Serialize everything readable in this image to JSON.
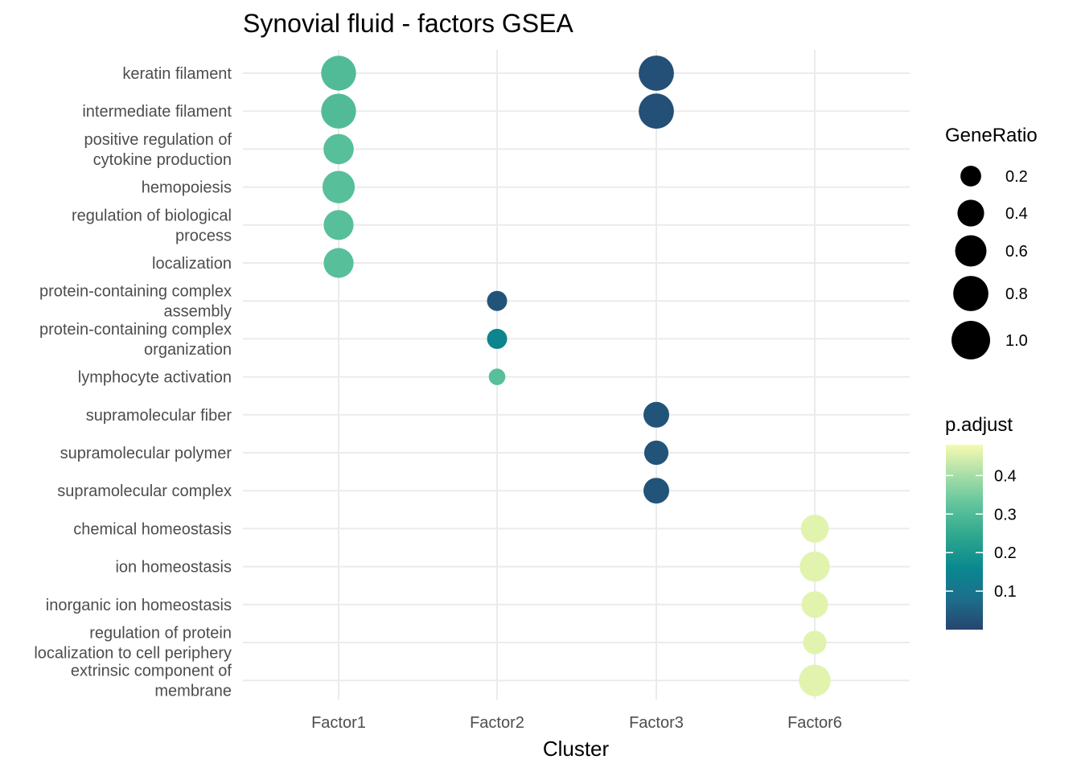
{
  "chart_data": {
    "type": "scatter",
    "title": "Synovial fluid - factors GSEA",
    "xlabel": "Cluster",
    "ylabel": "",
    "x_categories": [
      "Factor1",
      "Factor2",
      "Factor3",
      "Factor6"
    ],
    "y_categories": [
      [
        "keratin filament"
      ],
      [
        "intermediate filament"
      ],
      [
        "positive regulation of",
        "cytokine production"
      ],
      [
        "hemopoiesis"
      ],
      [
        "regulation of biological",
        "process"
      ],
      [
        "localization"
      ],
      [
        "protein-containing complex",
        "assembly"
      ],
      [
        "protein-containing complex",
        "organization"
      ],
      [
        "lymphocyte activation"
      ],
      [
        "supramolecular fiber"
      ],
      [
        "supramolecular polymer"
      ],
      [
        "supramolecular complex"
      ],
      [
        "chemical homeostasis"
      ],
      [
        "ion homeostasis"
      ],
      [
        "inorganic ion homeostasis"
      ],
      [
        "regulation of protein",
        "localization to cell periphery"
      ],
      [
        "extrinsic component of",
        "membrane"
      ]
    ],
    "points": [
      {
        "x": "Factor1",
        "y": 0,
        "gene_ratio": 0.78,
        "p_adjust": 0.3
      },
      {
        "x": "Factor1",
        "y": 1,
        "gene_ratio": 0.78,
        "p_adjust": 0.3
      },
      {
        "x": "Factor1",
        "y": 2,
        "gene_ratio": 0.55,
        "p_adjust": 0.31
      },
      {
        "x": "Factor1",
        "y": 3,
        "gene_ratio": 0.65,
        "p_adjust": 0.31
      },
      {
        "x": "Factor1",
        "y": 4,
        "gene_ratio": 0.53,
        "p_adjust": 0.31
      },
      {
        "x": "Factor1",
        "y": 5,
        "gene_ratio": 0.53,
        "p_adjust": 0.31
      },
      {
        "x": "Factor2",
        "y": 6,
        "gene_ratio": 0.18,
        "p_adjust": 0.03
      },
      {
        "x": "Factor2",
        "y": 7,
        "gene_ratio": 0.18,
        "p_adjust": 0.15
      },
      {
        "x": "Factor2",
        "y": 8,
        "gene_ratio": 0.1,
        "p_adjust": 0.31
      },
      {
        "x": "Factor3",
        "y": 0,
        "gene_ratio": 0.8,
        "p_adjust": 0.02
      },
      {
        "x": "Factor3",
        "y": 1,
        "gene_ratio": 0.8,
        "p_adjust": 0.02
      },
      {
        "x": "Factor3",
        "y": 9,
        "gene_ratio": 0.36,
        "p_adjust": 0.03
      },
      {
        "x": "Factor3",
        "y": 10,
        "gene_ratio": 0.31,
        "p_adjust": 0.03
      },
      {
        "x": "Factor3",
        "y": 11,
        "gene_ratio": 0.36,
        "p_adjust": 0.03
      },
      {
        "x": "Factor6",
        "y": 12,
        "gene_ratio": 0.45,
        "p_adjust": 0.46
      },
      {
        "x": "Factor6",
        "y": 13,
        "gene_ratio": 0.55,
        "p_adjust": 0.46
      },
      {
        "x": "Factor6",
        "y": 14,
        "gene_ratio": 0.4,
        "p_adjust": 0.46
      },
      {
        "x": "Factor6",
        "y": 15,
        "gene_ratio": 0.28,
        "p_adjust": 0.46
      },
      {
        "x": "Factor6",
        "y": 16,
        "gene_ratio": 0.62,
        "p_adjust": 0.46
      }
    ],
    "size_legend": {
      "title": "GeneRatio",
      "breaks": [
        0.2,
        0.4,
        0.6,
        0.8,
        1.0
      ],
      "labels": [
        "0.2",
        "0.4",
        "0.6",
        "0.8",
        "1.0"
      ]
    },
    "color_legend": {
      "title": "p.adjust",
      "min": 0.0,
      "max": 0.48,
      "breaks": [
        0.1,
        0.2,
        0.3,
        0.4
      ],
      "labels": [
        "0.1",
        "0.2",
        "0.3",
        "0.4"
      ],
      "gradient": [
        "#26456E",
        "#1C6E8C",
        "#0A888F",
        "#2DA68D",
        "#5DC29B",
        "#A6DDA8",
        "#F6FAB0"
      ]
    },
    "grid": true,
    "legend_position": "right"
  }
}
